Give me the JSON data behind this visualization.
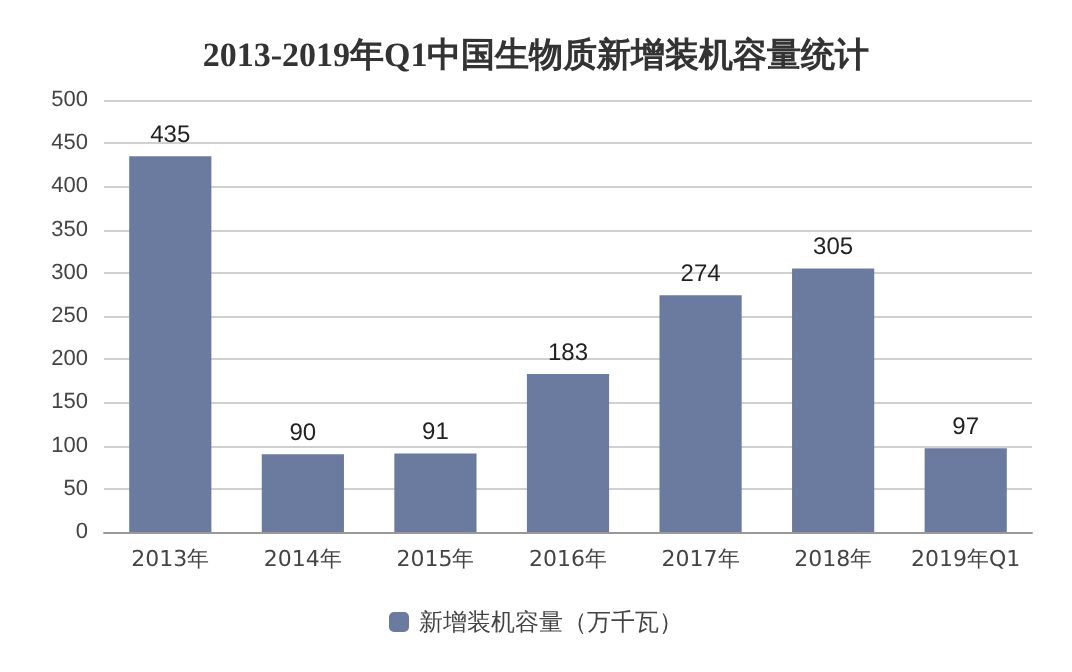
{
  "chart_data": {
    "type": "bar",
    "title": "2013-2019年Q1中国生物质新增装机容量统计",
    "categories": [
      "2013年",
      "2014年",
      "2015年",
      "2016年",
      "2017年",
      "2018年",
      "2019年Q1"
    ],
    "series": [
      {
        "name": "新增装机容量（万千瓦）",
        "color": "#6b7a9f",
        "values": [
          435,
          90,
          91,
          183,
          274,
          305,
          97
        ]
      }
    ],
    "ylim": [
      0,
      500
    ],
    "yticks": [
      0,
      50,
      100,
      150,
      200,
      250,
      300,
      350,
      400,
      450,
      500
    ],
    "grid": "y",
    "legend": "bottom",
    "data_labels": true
  }
}
